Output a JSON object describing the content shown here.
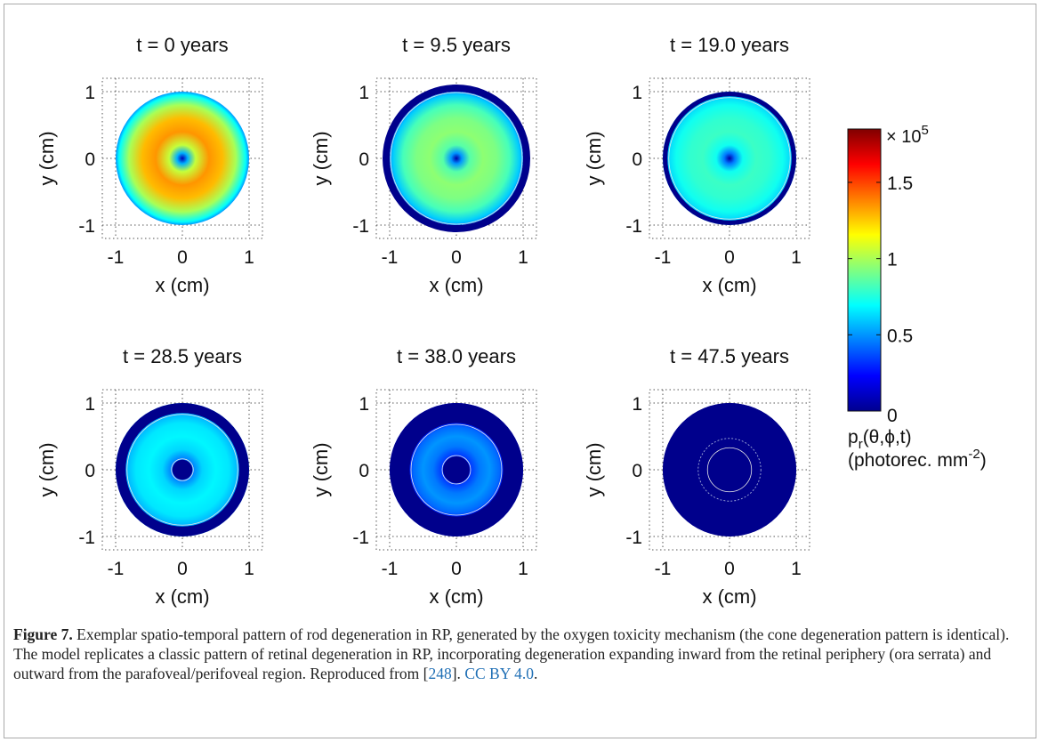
{
  "figure": {
    "panel_titles": [
      "t = 0 years",
      "t = 9.5 years",
      "t = 19.0 years",
      "t = 28.5 years",
      "t = 38.0 years",
      "t = 47.5 years"
    ],
    "xlabel": "x (cm)",
    "ylabel": "y (cm)",
    "x_tick_labels": [
      "-1",
      "0",
      "1"
    ],
    "y_tick_labels": [
      "1",
      "0",
      "-1"
    ],
    "colorbar": {
      "multiplier_label": "× 10",
      "multiplier_exponent": "5",
      "tick_labels": [
        "1.5",
        "1",
        "0.5",
        "0"
      ],
      "label_line1": "p",
      "label_line1_sub": "r",
      "label_line1_rest": "(θ,ϕ,t)",
      "label_line2": "(photorec. mm",
      "label_line2_sup": "-2",
      "label_line2_end": ")"
    }
  },
  "chart_data": [
    {
      "type": "heatmap",
      "title": "t = 0 years",
      "xlabel": "x (cm)",
      "ylabel": "y (cm)",
      "xlim": [
        -1.2,
        1.2
      ],
      "ylim": [
        -1.2,
        1.2
      ],
      "grid": true,
      "radial_profile": {
        "r_cm": [
          0,
          0.08,
          0.2,
          0.4,
          0.6,
          0.8,
          0.95,
          1.0
        ],
        "value_x1e5": [
          0.08,
          0.55,
          1.05,
          1.35,
          1.28,
          1.0,
          0.7,
          0.5
        ]
      },
      "degenerated_outer_from_r": null,
      "degenerated_inner_to_r": null
    },
    {
      "type": "heatmap",
      "title": "t = 9.5 years",
      "xlabel": "x (cm)",
      "ylabel": "y (cm)",
      "xlim": [
        -1.2,
        1.2
      ],
      "ylim": [
        -1.2,
        1.2
      ],
      "grid": true,
      "radial_profile": {
        "r_cm": [
          0,
          0.08,
          0.2,
          0.4,
          0.6,
          0.8,
          0.95,
          1.0
        ],
        "value_x1e5": [
          0.05,
          0.5,
          0.85,
          0.95,
          0.92,
          0.82,
          0.6,
          0.5
        ]
      },
      "degenerated_outer_from_r": 1.0,
      "degenerated_inner_to_r": null
    },
    {
      "type": "heatmap",
      "title": "t = 19.0 years",
      "xlabel": "x (cm)",
      "ylabel": "y (cm)",
      "xlim": [
        -1.2,
        1.2
      ],
      "ylim": [
        -1.2,
        1.2
      ],
      "grid": true,
      "radial_profile": {
        "r_cm": [
          0,
          0.08,
          0.2,
          0.4,
          0.6,
          0.8,
          0.95
        ],
        "value_x1e5": [
          0.05,
          0.45,
          0.72,
          0.8,
          0.78,
          0.72,
          0.6
        ]
      },
      "degenerated_outer_from_r": 0.93,
      "degenerated_inner_to_r": null
    },
    {
      "type": "heatmap",
      "title": "t = 28.5 years",
      "xlabel": "x (cm)",
      "ylabel": "y (cm)",
      "xlim": [
        -1.2,
        1.2
      ],
      "ylim": [
        -1.2,
        1.2
      ],
      "grid": true,
      "radial_profile": {
        "r_cm": [
          0.15,
          0.3,
          0.5,
          0.7,
          0.85
        ],
        "value_x1e5": [
          0.45,
          0.62,
          0.68,
          0.65,
          0.55
        ]
      },
      "degenerated_outer_from_r": 0.85,
      "degenerated_inner_to_r": 0.15
    },
    {
      "type": "heatmap",
      "title": "t = 38.0 years",
      "xlabel": "x (cm)",
      "ylabel": "y (cm)",
      "xlim": [
        -1.2,
        1.2
      ],
      "ylim": [
        -1.2,
        1.2
      ],
      "grid": true,
      "radial_profile": {
        "r_cm": [
          0.2,
          0.35,
          0.5,
          0.65,
          0.7
        ],
        "value_x1e5": [
          0.32,
          0.45,
          0.5,
          0.42,
          0.3
        ]
      },
      "degenerated_outer_from_r": 0.7,
      "degenerated_inner_to_r": 0.2
    },
    {
      "type": "heatmap",
      "title": "t = 47.5 years",
      "xlabel": "x (cm)",
      "ylabel": "y (cm)",
      "xlim": [
        -1.2,
        1.2
      ],
      "ylim": [
        -1.2,
        1.2
      ],
      "grid": true,
      "radial_profile": {
        "r_cm": [],
        "value_x1e5": []
      },
      "degenerated_outer_from_r": 0.0,
      "degenerated_inner_to_r": null
    }
  ],
  "colors": {
    "colormap": [
      "#00008f",
      "#0000ff",
      "#0080ff",
      "#00ffff",
      "#80ff80",
      "#ffff00",
      "#ff8000",
      "#ff0000",
      "#800000"
    ],
    "degenerated": "#00008c",
    "grid": "#555555"
  },
  "caption": {
    "label": "Figure 7.",
    "text": " Exemplar spatio-temporal pattern of rod degeneration in RP, generated by the oxygen toxicity mechanism (the cone degeneration pattern is identical). The model replicates a classic pattern of retinal degeneration in RP, incorporating degeneration expanding inward from the retinal periphery (ora serrata) and outward from the parafoveal/perifoveal region. Reproduced from [",
    "ref": "248",
    "after_ref": "]. ",
    "license": "CC BY 4.0",
    "end": "."
  }
}
